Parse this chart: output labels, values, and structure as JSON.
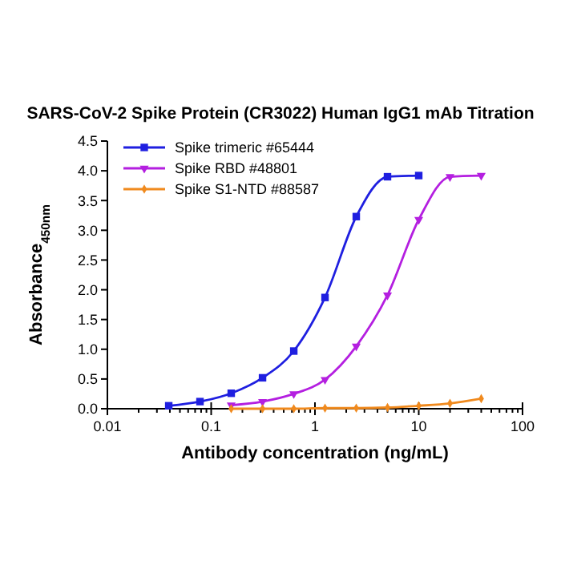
{
  "chart_data": {
    "type": "line",
    "title": "SARS-CoV-2 Spike Protein (CR3022) Human IgG1 mAb Titration",
    "xlabel": "Antibody concentration (ng/mL)",
    "ylabel": "Absorbance$_{450nm}$",
    "log": "x",
    "grid": false,
    "legend": "top left",
    "line_style": "solid",
    "xlim": [
      0.01,
      100
    ],
    "xticks": [
      0.01,
      0.1,
      1,
      10,
      100
    ],
    "ylim": [
      0,
      4.5
    ],
    "yticks": [
      {
        "value": 0,
        "label": "0.0"
      },
      {
        "value": 0.5,
        "label": "0.5"
      },
      {
        "value": 1,
        "label": "1.0"
      },
      {
        "value": 1.5,
        "label": "1.5"
      },
      {
        "value": 2,
        "label": "2.0"
      },
      {
        "value": 2.5,
        "label": "2.5"
      },
      {
        "value": 3,
        "label": "3.0"
      },
      {
        "value": 3.5,
        "label": "3.5"
      },
      {
        "value": 4,
        "label": "4.0"
      },
      {
        "value": 4.5,
        "label": "4.5"
      }
    ],
    "series": [
      {
        "name": "Spike trimeric #65444",
        "color": "#1f1fe0",
        "marker": "square",
        "x": [
          0.039,
          0.078,
          0.156,
          0.3125,
          0.625,
          1.25,
          2.5,
          5,
          10
        ],
        "values": [
          0.05,
          0.12,
          0.26,
          0.52,
          0.97,
          1.87,
          3.23,
          3.9,
          3.92
        ]
      },
      {
        "name": "Spike RBD #48801",
        "color": "#b41fe0",
        "marker": "triangle",
        "x": [
          0.156,
          0.3125,
          0.625,
          1.25,
          2.5,
          5,
          10,
          20,
          40
        ],
        "values": [
          0.06,
          0.12,
          0.25,
          0.49,
          1.05,
          1.91,
          3.18,
          3.9,
          3.92
        ]
      },
      {
        "name": "Spike S1-NTD #88587",
        "color": "#f08a1e",
        "marker": "diamond",
        "x": [
          0.156,
          0.3125,
          0.625,
          1.25,
          2.5,
          5,
          10,
          20,
          40
        ],
        "values": [
          0.0,
          0.0,
          0.0,
          0.01,
          0.01,
          0.02,
          0.05,
          0.09,
          0.17
        ]
      }
    ]
  }
}
